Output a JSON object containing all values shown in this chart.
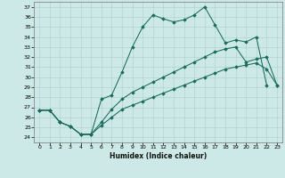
{
  "xlabel": "Humidex (Indice chaleur)",
  "bg_color": "#cce9e7",
  "grid_color": "#aacfcd",
  "line_color": "#1a6b5a",
  "xlim": [
    -0.5,
    23.5
  ],
  "ylim": [
    23.5,
    37.5
  ],
  "xticks": [
    0,
    1,
    2,
    3,
    4,
    5,
    6,
    7,
    8,
    9,
    10,
    11,
    12,
    13,
    14,
    15,
    16,
    17,
    18,
    19,
    20,
    21,
    22,
    23
  ],
  "yticks": [
    24,
    25,
    26,
    27,
    28,
    29,
    30,
    31,
    32,
    33,
    34,
    35,
    36,
    37
  ],
  "line1_x": [
    0,
    1,
    2,
    3,
    4,
    5,
    6,
    7,
    8,
    9,
    10,
    11,
    12,
    13,
    14,
    15,
    16,
    17,
    18,
    19,
    20,
    21,
    22
  ],
  "line1_y": [
    26.7,
    26.7,
    25.5,
    25.1,
    24.3,
    24.3,
    27.8,
    28.2,
    30.5,
    33.0,
    35.0,
    36.2,
    35.8,
    35.5,
    35.7,
    36.2,
    37.0,
    35.2,
    33.4,
    33.7,
    33.5,
    34.0,
    29.2
  ],
  "line2_x": [
    0,
    1,
    2,
    3,
    4,
    5,
    6,
    7,
    8,
    9,
    10,
    11,
    12,
    13,
    14,
    15,
    16,
    17,
    18,
    19,
    20,
    21,
    22,
    23
  ],
  "line2_y": [
    26.7,
    26.7,
    25.5,
    25.1,
    24.3,
    24.3,
    25.5,
    26.8,
    27.8,
    28.5,
    29.0,
    29.5,
    30.0,
    30.5,
    31.0,
    31.5,
    32.0,
    32.5,
    32.8,
    33.0,
    31.5,
    31.8,
    32.0,
    29.2
  ],
  "line3_x": [
    0,
    1,
    2,
    3,
    4,
    5,
    6,
    7,
    8,
    9,
    10,
    11,
    12,
    13,
    14,
    15,
    16,
    17,
    18,
    19,
    20,
    21,
    22,
    23
  ],
  "line3_y": [
    26.7,
    26.7,
    25.5,
    25.1,
    24.3,
    24.3,
    25.2,
    26.0,
    26.8,
    27.2,
    27.6,
    28.0,
    28.4,
    28.8,
    29.2,
    29.6,
    30.0,
    30.4,
    30.8,
    31.0,
    31.2,
    31.4,
    30.8,
    29.2
  ]
}
